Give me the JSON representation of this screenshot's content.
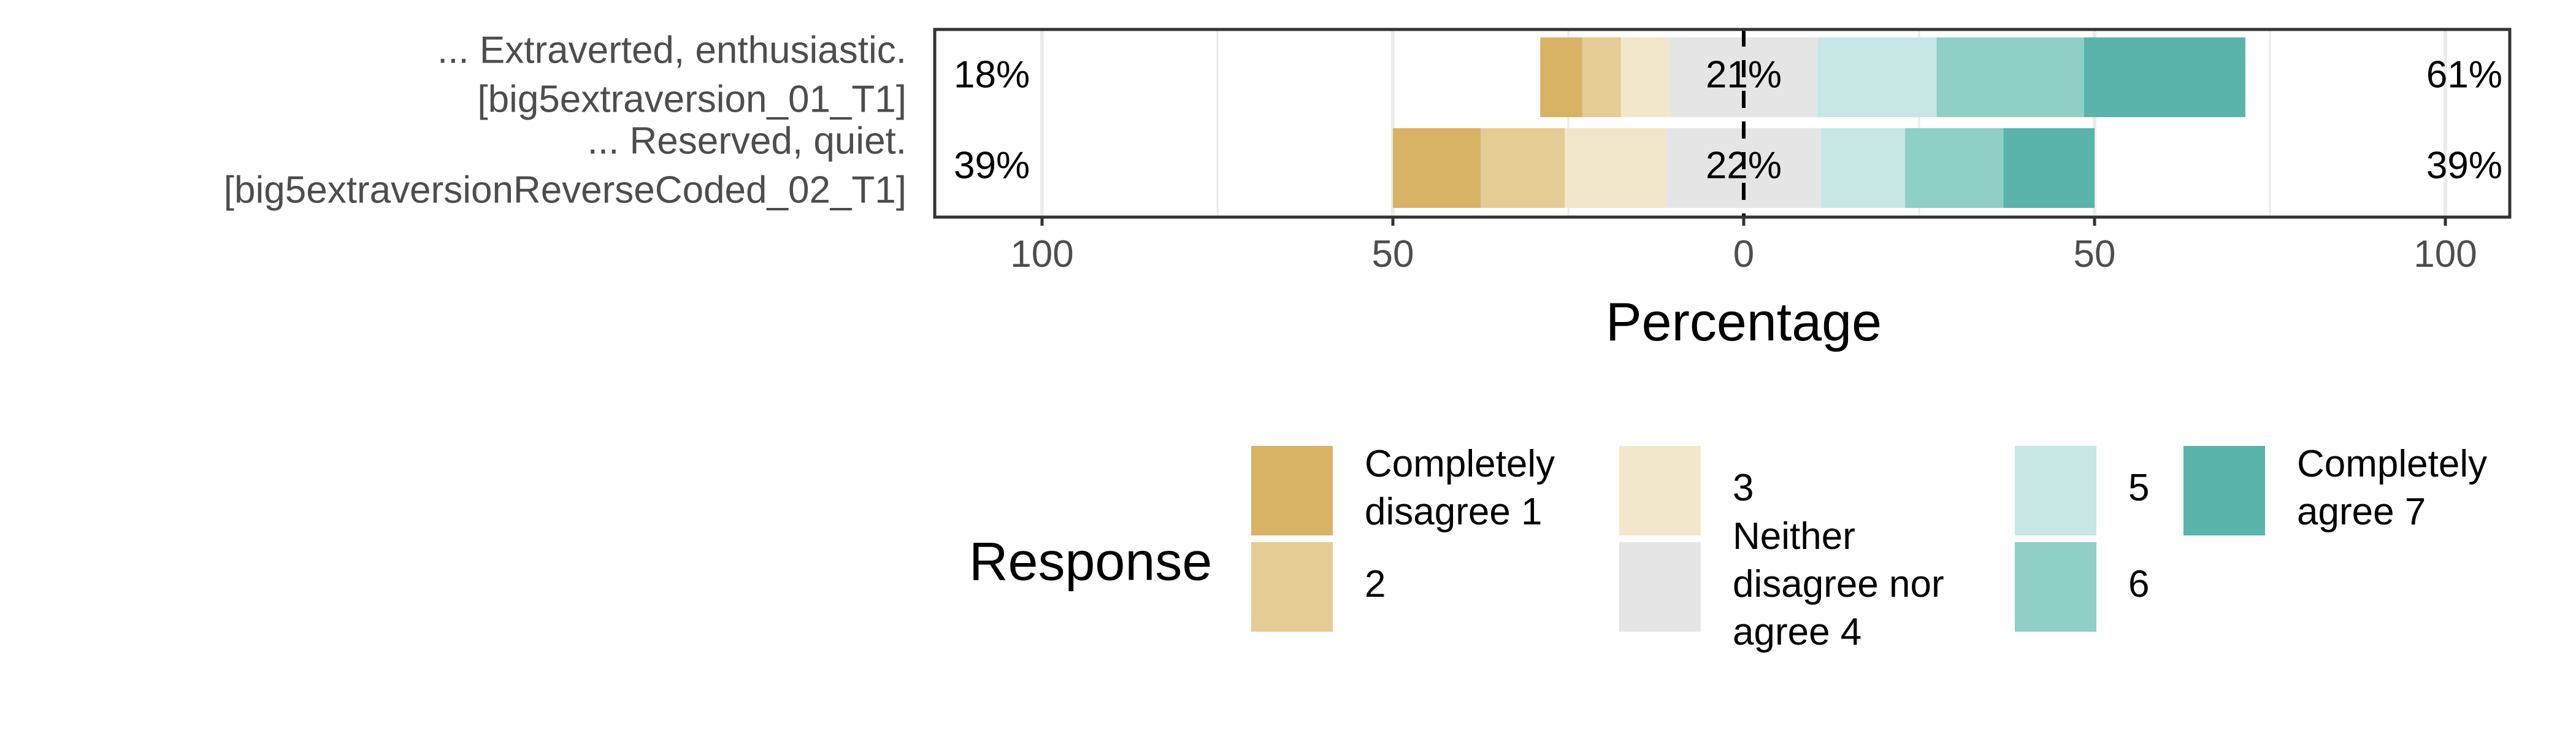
{
  "chart_data": {
    "type": "bar",
    "subtype": "diverging-stacked-likert",
    "orientation": "horizontal",
    "title": "",
    "xlabel": "Percentage",
    "ylabel": "",
    "xlim": [
      -100,
      100
    ],
    "xticks": [
      -100,
      -50,
      0,
      50,
      100
    ],
    "xtick_labels": [
      "100",
      "50",
      "0",
      "50",
      "100"
    ],
    "grid": true,
    "legend": {
      "title": "Response",
      "placement": "bottom",
      "columns": [
        [
          "Completely disagree 1",
          "2"
        ],
        [
          "3",
          "Neither disagree nor agree 4"
        ],
        [
          "5",
          "6"
        ],
        [
          "Completely agree 7"
        ]
      ]
    },
    "levels": [
      "Completely disagree 1",
      "2",
      "3",
      "Neither disagree nor agree 4",
      "5",
      "6",
      "Completely agree 7"
    ],
    "colors": [
      "#d8b365",
      "#e5cb94",
      "#f2e6cb",
      "#e5e5e5",
      "#c7e7e4",
      "#8fcfc6",
      "#5ab4ac"
    ],
    "items": [
      {
        "label_line1": "... Extraverted, enthusiastic.",
        "label_line2": "[big5extraversion_01_T1]",
        "values": [
          6,
          5.5,
          7,
          21,
          17,
          21,
          23
        ],
        "low_pct": "18%",
        "neutral_pct": "21%",
        "high_pct": "61%"
      },
      {
        "label_line1": "... Reserved, quiet.",
        "label_line2": "[big5extraversionReverseCoded_02_T1]",
        "values": [
          12.5,
          12,
          14.5,
          22,
          12,
          14,
          13
        ],
        "low_pct": "39%",
        "neutral_pct": "22%",
        "high_pct": "39%"
      }
    ]
  }
}
